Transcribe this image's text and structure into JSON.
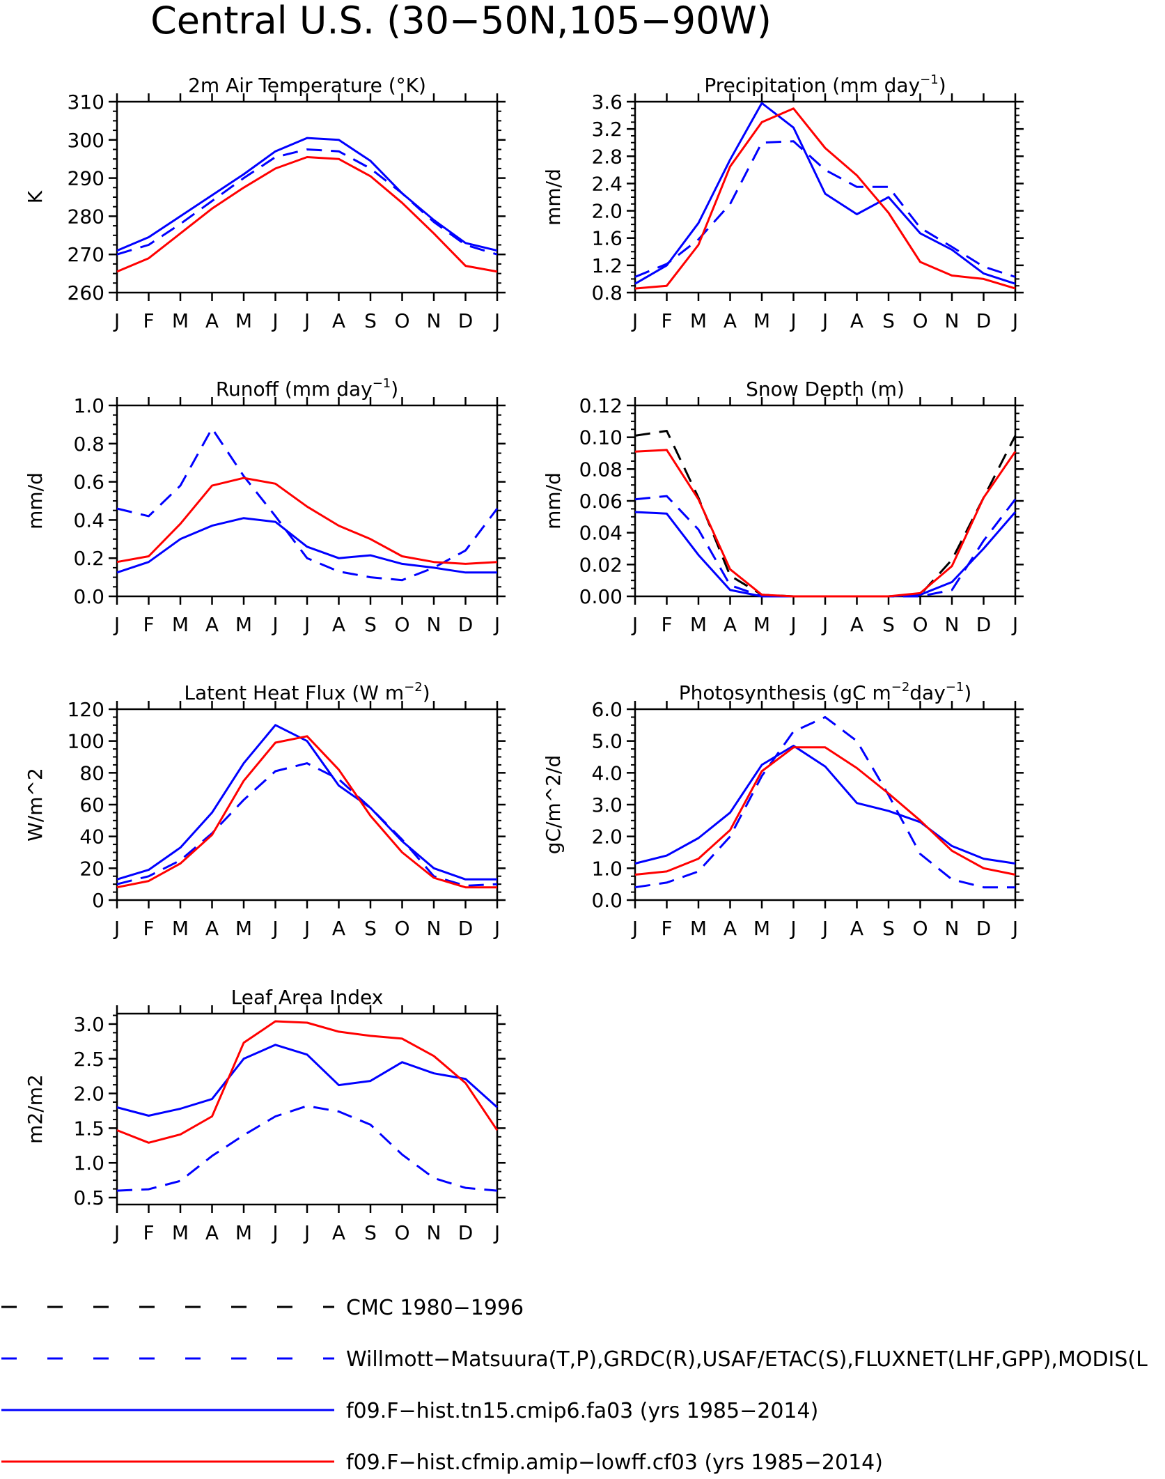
{
  "title": "Central U.S. (30−50N,105−90W)",
  "months": [
    "J",
    "F",
    "M",
    "A",
    "M",
    "J",
    "J",
    "A",
    "S",
    "O",
    "N",
    "D",
    "J"
  ],
  "colors": {
    "obs": "#0000ff",
    "cmc": "#000000",
    "model_blue": "#0000ff",
    "model_red": "#ff0000"
  },
  "legend": [
    {
      "label": "CMC 1980−1996",
      "color": "#000000",
      "dash": "dashed"
    },
    {
      "label": "Willmott−Matsuura(T,P),GRDC(R),USAF/ETAC(S),FLUXNET(LHF,GPP),MODIS(L",
      "color": "#0000ff",
      "dash": "dashed"
    },
    {
      "label": "f09.F−hist.tn15.cmip6.fa03 (yrs 1985−2014)",
      "color": "#0000ff",
      "dash": "solid"
    },
    {
      "label": "f09.F−hist.cfmip.amip−lowff.cf03 (yrs 1985−2014)",
      "color": "#ff0000",
      "dash": "solid"
    }
  ],
  "chart_data": [
    {
      "type": "line",
      "title": "2m Air Temperature (°K)",
      "ylabel": "K",
      "ylim": [
        260,
        310
      ],
      "yticks": [
        260,
        270,
        280,
        290,
        300,
        310
      ],
      "ytick_labels": [
        "260",
        "270",
        "280",
        "290",
        "300",
        "310"
      ],
      "series": [
        {
          "style": "dashed",
          "color": "#0000ff",
          "values": [
            270.0,
            272.5,
            278.0,
            284.0,
            290.0,
            295.5,
            297.5,
            297.0,
            292.5,
            286.0,
            278.5,
            272.5,
            270.0
          ]
        },
        {
          "style": "solid",
          "color": "#0000ff",
          "values": [
            271.0,
            274.5,
            280.0,
            285.5,
            291.0,
            297.0,
            300.5,
            300.0,
            294.5,
            286.0,
            279.0,
            273.0,
            271.0
          ]
        },
        {
          "style": "solid",
          "color": "#ff0000",
          "values": [
            265.5,
            269.0,
            275.5,
            282.0,
            287.5,
            292.5,
            295.5,
            295.0,
            290.5,
            283.5,
            275.5,
            267.0,
            265.5
          ]
        }
      ]
    },
    {
      "type": "line",
      "title": "Precipitation (mm day",
      "title_sup": "−1",
      "title_end": ")",
      "ylabel": "mm/d",
      "ylim": [
        0.8,
        3.6
      ],
      "yticks": [
        0.8,
        1.2,
        1.6,
        2.0,
        2.4,
        2.8,
        3.2,
        3.6
      ],
      "ytick_labels": [
        "0.8",
        "1.2",
        "1.6",
        "2.0",
        "2.4",
        "2.8",
        "3.2",
        "3.6"
      ],
      "series": [
        {
          "style": "dashed",
          "color": "#0000ff",
          "values": [
            1.03,
            1.22,
            1.58,
            2.1,
            3.0,
            3.02,
            2.6,
            2.35,
            2.35,
            1.75,
            1.47,
            1.18,
            1.03
          ]
        },
        {
          "style": "solid",
          "color": "#0000ff",
          "values": [
            0.93,
            1.2,
            1.82,
            2.75,
            3.58,
            3.22,
            2.25,
            1.95,
            2.2,
            1.67,
            1.43,
            1.08,
            0.93
          ]
        },
        {
          "style": "solid",
          "color": "#ff0000",
          "values": [
            0.86,
            0.9,
            1.5,
            2.65,
            3.3,
            3.5,
            2.92,
            2.52,
            1.97,
            1.25,
            1.05,
            1.0,
            0.86
          ]
        }
      ]
    },
    {
      "type": "line",
      "title": "Runoff (mm day",
      "title_sup": "−1",
      "title_end": ")",
      "ylabel": "mm/d",
      "ylim": [
        0.0,
        1.0
      ],
      "yticks": [
        0.0,
        0.2,
        0.4,
        0.6,
        0.8,
        1.0
      ],
      "ytick_labels": [
        "0.0",
        "0.2",
        "0.4",
        "0.6",
        "0.8",
        "1.0"
      ],
      "series": [
        {
          "style": "dashed",
          "color": "#0000ff",
          "values": [
            0.46,
            0.42,
            0.58,
            0.88,
            0.63,
            0.42,
            0.2,
            0.13,
            0.1,
            0.085,
            0.15,
            0.24,
            0.46
          ]
        },
        {
          "style": "solid",
          "color": "#0000ff",
          "values": [
            0.125,
            0.18,
            0.3,
            0.37,
            0.41,
            0.39,
            0.26,
            0.2,
            0.215,
            0.17,
            0.15,
            0.125,
            0.125
          ]
        },
        {
          "style": "solid",
          "color": "#ff0000",
          "values": [
            0.18,
            0.21,
            0.38,
            0.58,
            0.62,
            0.59,
            0.47,
            0.37,
            0.3,
            0.21,
            0.18,
            0.17,
            0.18
          ]
        }
      ]
    },
    {
      "type": "line",
      "title": "Snow Depth (m)",
      "ylabel": "mm/d",
      "ylim": [
        0.0,
        0.12
      ],
      "yticks": [
        0.0,
        0.02,
        0.04,
        0.06,
        0.08,
        0.1,
        0.12
      ],
      "ytick_labels": [
        "0.00",
        "0.02",
        "0.04",
        "0.06",
        "0.08",
        "0.10",
        "0.12"
      ],
      "series": [
        {
          "style": "dashed",
          "color": "#000000",
          "values": [
            0.101,
            0.104,
            0.062,
            0.013,
            0.001,
            0.0,
            0.0,
            0.0,
            0.0,
            0.001,
            0.023,
            0.062,
            0.101
          ]
        },
        {
          "style": "dashed",
          "color": "#0000ff",
          "values": [
            0.061,
            0.063,
            0.042,
            0.007,
            0.0,
            0.0,
            0.0,
            0.0,
            0.0,
            0.0,
            0.004,
            0.035,
            0.061
          ]
        },
        {
          "style": "solid",
          "color": "#0000ff",
          "values": [
            0.053,
            0.052,
            0.026,
            0.004,
            0.0,
            0.0,
            0.0,
            0.0,
            0.0,
            0.001,
            0.009,
            0.03,
            0.053
          ]
        },
        {
          "style": "solid",
          "color": "#ff0000",
          "values": [
            0.091,
            0.092,
            0.061,
            0.017,
            0.001,
            0.0,
            0.0,
            0.0,
            0.0,
            0.002,
            0.019,
            0.062,
            0.091
          ]
        }
      ]
    },
    {
      "type": "line",
      "title": "Latent Heat Flux (W m",
      "title_sup": "−2",
      "title_end": ")",
      "ylabel": "W/m^2",
      "ylim": [
        0,
        120
      ],
      "yticks": [
        0,
        20,
        40,
        60,
        80,
        100,
        120
      ],
      "ytick_labels": [
        "0",
        "20",
        "40",
        "60",
        "80",
        "100",
        "120"
      ],
      "series": [
        {
          "style": "dashed",
          "color": "#0000ff",
          "values": [
            10,
            15,
            25,
            42,
            63,
            81,
            86,
            76,
            58,
            38,
            15,
            9,
            10
          ]
        },
        {
          "style": "solid",
          "color": "#0000ff",
          "values": [
            13,
            19,
            33,
            55,
            86,
            110,
            100,
            72,
            58,
            37,
            20,
            13,
            13
          ]
        },
        {
          "style": "solid",
          "color": "#ff0000",
          "values": [
            8,
            12,
            23,
            41,
            75,
            99,
            103,
            82,
            53,
            30,
            14,
            8,
            8
          ]
        }
      ]
    },
    {
      "type": "line",
      "title": "Photosynthesis (gC m",
      "title_sup": "−2",
      "title_end": "day",
      "title_sup2": "−1",
      "title_end2": ")",
      "ylabel": "gC/m^2/d",
      "ylim": [
        0.0,
        6.0
      ],
      "yticks": [
        0,
        1,
        2,
        3,
        4,
        5,
        6
      ],
      "ytick_labels": [
        "0.0",
        "1.0",
        "2.0",
        "3.0",
        "4.0",
        "5.0",
        "6.0"
      ],
      "series": [
        {
          "style": "dashed",
          "color": "#0000ff",
          "values": [
            0.4,
            0.55,
            0.9,
            2.0,
            3.9,
            5.3,
            5.75,
            5.0,
            3.3,
            1.45,
            0.65,
            0.4,
            0.4
          ]
        },
        {
          "style": "solid",
          "color": "#0000ff",
          "values": [
            1.15,
            1.4,
            1.95,
            2.75,
            4.25,
            4.85,
            4.2,
            3.05,
            2.8,
            2.45,
            1.7,
            1.3,
            1.15
          ]
        },
        {
          "style": "solid",
          "color": "#ff0000",
          "values": [
            0.8,
            0.9,
            1.3,
            2.2,
            4.05,
            4.8,
            4.8,
            4.15,
            3.35,
            2.5,
            1.55,
            1.0,
            0.8
          ]
        }
      ]
    },
    {
      "type": "line",
      "title": "Leaf Area Index",
      "ylabel": "m2/m2",
      "ylim": [
        0.5,
        3.0
      ],
      "ylim_plot": [
        0.4,
        3.15
      ],
      "yticks": [
        0.5,
        1.0,
        1.5,
        2.0,
        2.5,
        3.0
      ],
      "ytick_labels": [
        "0.5",
        "1.0",
        "1.5",
        "2.0",
        "2.5",
        "3.0"
      ],
      "series": [
        {
          "style": "dashed",
          "color": "#0000ff",
          "values": [
            0.6,
            0.62,
            0.74,
            1.1,
            1.4,
            1.67,
            1.82,
            1.74,
            1.55,
            1.12,
            0.78,
            0.64,
            0.6
          ]
        },
        {
          "style": "solid",
          "color": "#0000ff",
          "values": [
            1.8,
            1.68,
            1.78,
            1.92,
            2.5,
            2.7,
            2.56,
            2.12,
            2.18,
            2.45,
            2.29,
            2.21,
            1.8
          ]
        },
        {
          "style": "solid",
          "color": "#ff0000",
          "values": [
            1.47,
            1.29,
            1.41,
            1.67,
            2.73,
            3.04,
            3.02,
            2.89,
            2.83,
            2.79,
            2.54,
            2.15,
            1.47
          ]
        }
      ]
    }
  ]
}
